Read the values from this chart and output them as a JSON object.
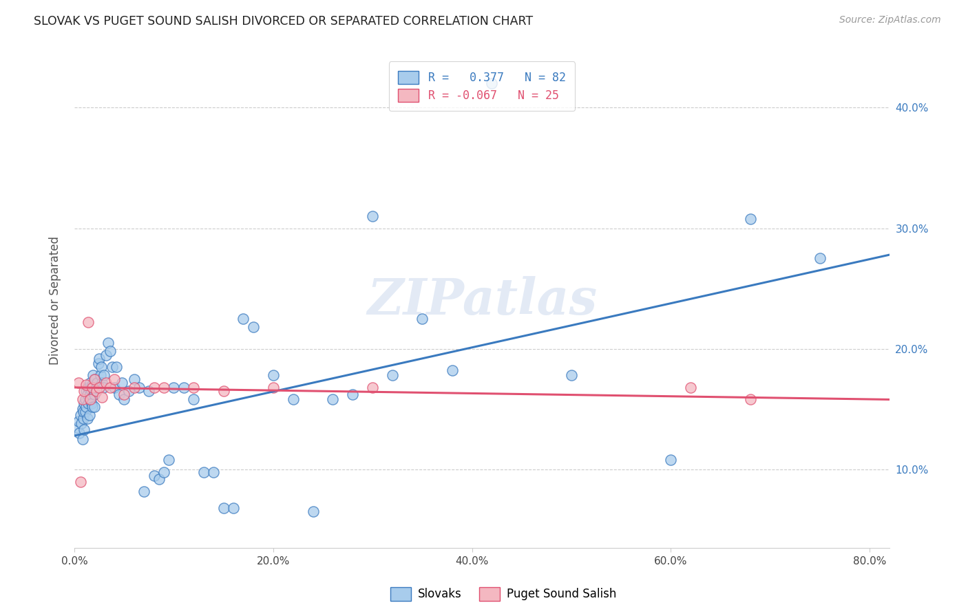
{
  "title": "SLOVAK VS PUGET SOUND SALISH DIVORCED OR SEPARATED CORRELATION CHART",
  "source": "Source: ZipAtlas.com",
  "ylabel": "Divorced or Separated",
  "xlim": [
    0.0,
    0.82
  ],
  "ylim": [
    0.035,
    0.445
  ],
  "legend1_label": "R =   0.377   N = 82",
  "legend2_label": "R = -0.067   N = 25",
  "legend_label_slovaks": "Slovaks",
  "legend_label_puget": "Puget Sound Salish",
  "blue_color": "#a8ccec",
  "pink_color": "#f4b8c1",
  "blue_line_color": "#3a7abf",
  "pink_line_color": "#e05070",
  "title_color": "#222222",
  "source_color": "#999999",
  "watermark": "ZIPatlas",
  "blue_scatter_x": [
    0.003,
    0.004,
    0.005,
    0.006,
    0.007,
    0.008,
    0.008,
    0.009,
    0.009,
    0.01,
    0.01,
    0.011,
    0.011,
    0.012,
    0.012,
    0.013,
    0.013,
    0.014,
    0.014,
    0.015,
    0.015,
    0.016,
    0.016,
    0.017,
    0.017,
    0.018,
    0.018,
    0.019,
    0.019,
    0.02,
    0.02,
    0.021,
    0.022,
    0.023,
    0.024,
    0.025,
    0.026,
    0.027,
    0.028,
    0.029,
    0.03,
    0.032,
    0.034,
    0.036,
    0.038,
    0.04,
    0.042,
    0.045,
    0.048,
    0.05,
    0.055,
    0.06,
    0.065,
    0.07,
    0.075,
    0.08,
    0.085,
    0.09,
    0.095,
    0.1,
    0.11,
    0.12,
    0.13,
    0.14,
    0.15,
    0.16,
    0.17,
    0.18,
    0.2,
    0.22,
    0.24,
    0.26,
    0.28,
    0.3,
    0.32,
    0.35,
    0.38,
    0.42,
    0.5,
    0.6,
    0.68,
    0.75
  ],
  "blue_scatter_y": [
    0.135,
    0.14,
    0.13,
    0.145,
    0.138,
    0.15,
    0.125,
    0.142,
    0.148,
    0.155,
    0.133,
    0.148,
    0.158,
    0.152,
    0.165,
    0.162,
    0.142,
    0.155,
    0.168,
    0.158,
    0.145,
    0.162,
    0.172,
    0.155,
    0.165,
    0.17,
    0.152,
    0.168,
    0.178,
    0.162,
    0.152,
    0.175,
    0.168,
    0.172,
    0.188,
    0.192,
    0.178,
    0.185,
    0.172,
    0.168,
    0.178,
    0.195,
    0.205,
    0.198,
    0.185,
    0.168,
    0.185,
    0.162,
    0.172,
    0.158,
    0.165,
    0.175,
    0.168,
    0.082,
    0.165,
    0.095,
    0.092,
    0.098,
    0.108,
    0.168,
    0.168,
    0.158,
    0.098,
    0.098,
    0.068,
    0.068,
    0.225,
    0.218,
    0.178,
    0.158,
    0.065,
    0.158,
    0.162,
    0.31,
    0.178,
    0.225,
    0.182,
    0.42,
    0.178,
    0.108,
    0.308,
    0.275
  ],
  "pink_scatter_x": [
    0.004,
    0.006,
    0.008,
    0.01,
    0.012,
    0.014,
    0.016,
    0.018,
    0.02,
    0.022,
    0.025,
    0.028,
    0.032,
    0.036,
    0.04,
    0.05,
    0.06,
    0.08,
    0.09,
    0.12,
    0.15,
    0.2,
    0.3,
    0.62,
    0.68
  ],
  "pink_scatter_y": [
    0.172,
    0.09,
    0.158,
    0.165,
    0.17,
    0.222,
    0.158,
    0.168,
    0.175,
    0.165,
    0.168,
    0.16,
    0.172,
    0.168,
    0.175,
    0.162,
    0.168,
    0.168,
    0.168,
    0.168,
    0.165,
    0.168,
    0.168,
    0.168,
    0.158
  ],
  "blue_line_x": [
    0.0,
    0.82
  ],
  "blue_line_y": [
    0.128,
    0.278
  ],
  "pink_line_x": [
    0.0,
    0.82
  ],
  "pink_line_y": [
    0.168,
    0.158
  ],
  "xtick_vals": [
    0.0,
    0.2,
    0.4,
    0.6,
    0.8
  ],
  "xtick_labels": [
    "0.0%",
    "20.0%",
    "40.0%",
    "60.0%",
    "80.0%"
  ],
  "ytick_vals": [
    0.1,
    0.2,
    0.3,
    0.4
  ],
  "ytick_labels": [
    "10.0%",
    "20.0%",
    "30.0%",
    "40.0%"
  ]
}
